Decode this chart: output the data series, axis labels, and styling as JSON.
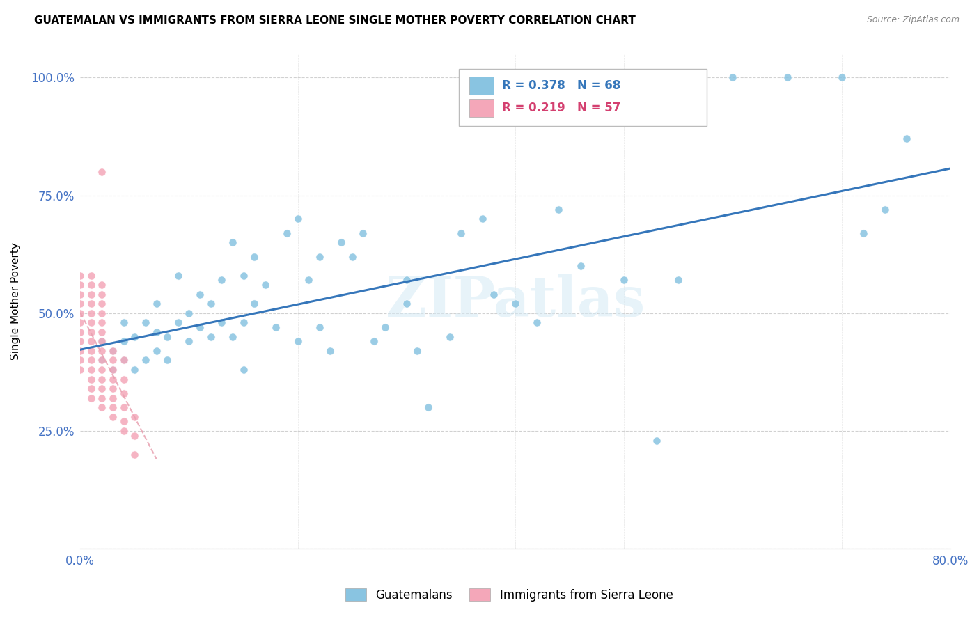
{
  "title": "GUATEMALAN VS IMMIGRANTS FROM SIERRA LEONE SINGLE MOTHER POVERTY CORRELATION CHART",
  "source": "Source: ZipAtlas.com",
  "ylabel": "Single Mother Poverty",
  "xlim": [
    0.0,
    0.8
  ],
  "ylim": [
    0.0,
    1.05
  ],
  "guatemalan_R": 0.378,
  "guatemalan_N": 68,
  "sierraleone_R": 0.219,
  "sierraleone_N": 57,
  "legend_label1": "Guatemalans",
  "legend_label2": "Immigrants from Sierra Leone",
  "blue_color": "#89c4e1",
  "pink_color": "#f4a7b9",
  "blue_line_color": "#3576ba",
  "pink_line_color": "#e8a0b0",
  "watermark": "ZIPatlas",
  "background_color": "#ffffff",
  "grid_color": "#cccccc",
  "tick_label_color": "#4472c4",
  "guatemalan_x": [
    0.02,
    0.02,
    0.03,
    0.03,
    0.04,
    0.04,
    0.04,
    0.05,
    0.05,
    0.06,
    0.06,
    0.07,
    0.07,
    0.07,
    0.08,
    0.08,
    0.09,
    0.09,
    0.1,
    0.1,
    0.11,
    0.11,
    0.12,
    0.12,
    0.13,
    0.13,
    0.14,
    0.14,
    0.15,
    0.15,
    0.15,
    0.16,
    0.16,
    0.17,
    0.18,
    0.19,
    0.2,
    0.2,
    0.21,
    0.22,
    0.22,
    0.23,
    0.24,
    0.25,
    0.26,
    0.27,
    0.28,
    0.3,
    0.3,
    0.31,
    0.32,
    0.34,
    0.35,
    0.37,
    0.38,
    0.4,
    0.42,
    0.44,
    0.46,
    0.5,
    0.53,
    0.55,
    0.6,
    0.65,
    0.7,
    0.72,
    0.74,
    0.76
  ],
  "guatemalan_y": [
    0.4,
    0.44,
    0.38,
    0.42,
    0.4,
    0.44,
    0.48,
    0.38,
    0.45,
    0.4,
    0.48,
    0.42,
    0.46,
    0.52,
    0.4,
    0.45,
    0.48,
    0.58,
    0.44,
    0.5,
    0.47,
    0.54,
    0.45,
    0.52,
    0.48,
    0.57,
    0.45,
    0.65,
    0.48,
    0.38,
    0.58,
    0.52,
    0.62,
    0.56,
    0.47,
    0.67,
    0.44,
    0.7,
    0.57,
    0.62,
    0.47,
    0.42,
    0.65,
    0.62,
    0.67,
    0.44,
    0.47,
    0.52,
    0.57,
    0.42,
    0.3,
    0.45,
    0.67,
    0.7,
    0.54,
    0.52,
    0.48,
    0.72,
    0.6,
    0.57,
    0.23,
    0.57,
    1.0,
    1.0,
    1.0,
    0.67,
    0.72,
    0.87
  ],
  "sierraleone_x": [
    0.0,
    0.0,
    0.0,
    0.0,
    0.0,
    0.0,
    0.0,
    0.0,
    0.0,
    0.0,
    0.0,
    0.01,
    0.01,
    0.01,
    0.01,
    0.01,
    0.01,
    0.01,
    0.01,
    0.01,
    0.01,
    0.01,
    0.01,
    0.01,
    0.01,
    0.02,
    0.02,
    0.02,
    0.02,
    0.02,
    0.02,
    0.02,
    0.02,
    0.02,
    0.02,
    0.02,
    0.02,
    0.02,
    0.02,
    0.03,
    0.03,
    0.03,
    0.03,
    0.03,
    0.03,
    0.03,
    0.03,
    0.04,
    0.04,
    0.04,
    0.04,
    0.04,
    0.04,
    0.05,
    0.05,
    0.05,
    0.02
  ],
  "sierraleone_y": [
    0.38,
    0.4,
    0.42,
    0.44,
    0.46,
    0.48,
    0.5,
    0.52,
    0.54,
    0.56,
    0.58,
    0.32,
    0.34,
    0.36,
    0.38,
    0.4,
    0.42,
    0.44,
    0.46,
    0.48,
    0.5,
    0.52,
    0.54,
    0.56,
    0.58,
    0.3,
    0.32,
    0.34,
    0.36,
    0.38,
    0.4,
    0.42,
    0.44,
    0.46,
    0.48,
    0.5,
    0.52,
    0.54,
    0.56,
    0.28,
    0.3,
    0.32,
    0.34,
    0.36,
    0.38,
    0.4,
    0.42,
    0.25,
    0.27,
    0.3,
    0.33,
    0.36,
    0.4,
    0.2,
    0.24,
    0.28,
    0.8
  ]
}
